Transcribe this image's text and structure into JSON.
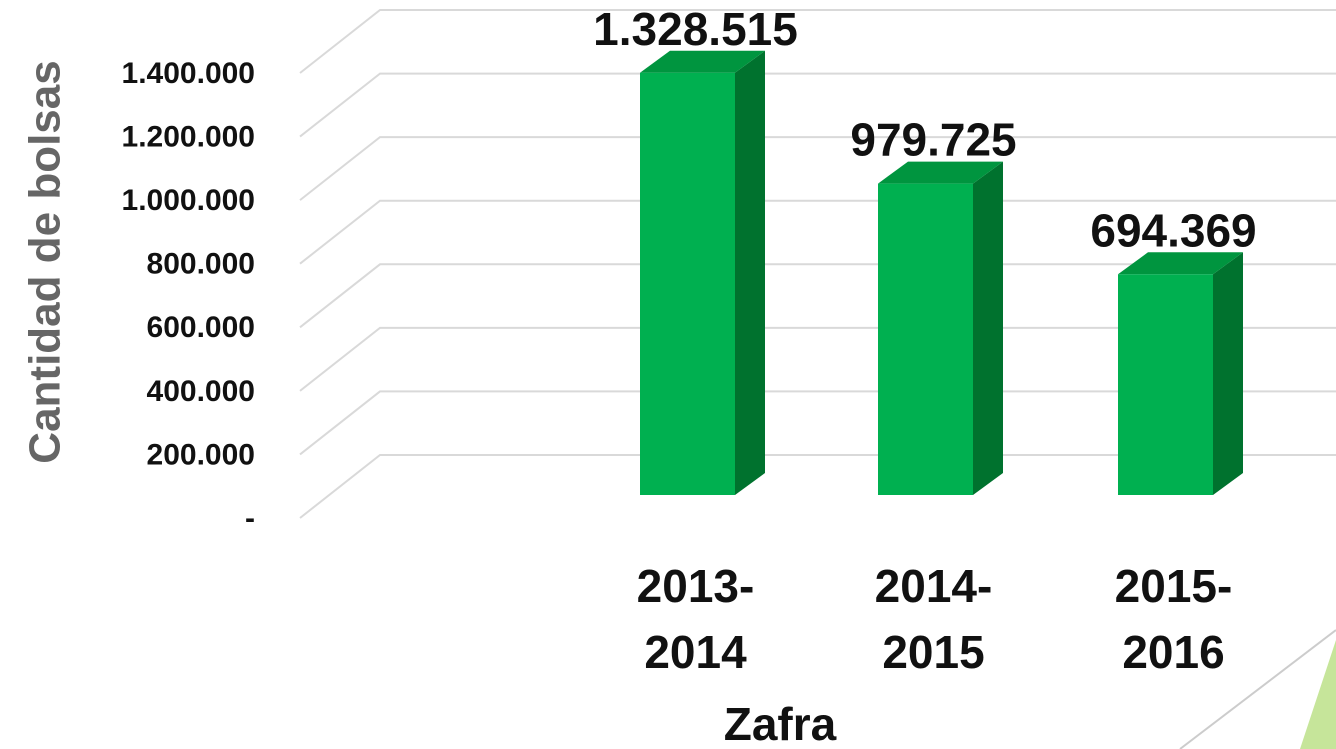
{
  "chart_data": {
    "type": "bar3d",
    "categories": [
      "2013-2014",
      "2014-2015",
      "2015-2016"
    ],
    "values": [
      1328515,
      979725,
      694369
    ],
    "value_labels": [
      "1.328.515",
      "979.725",
      "694.369"
    ],
    "color": "#00b050",
    "x_label": "Zafra",
    "y_label": "Cantidad de bolsas",
    "ylim": [
      0,
      1400000
    ],
    "yticks": [
      {
        "value": 0,
        "label": "-"
      },
      {
        "value": 200000,
        "label": "200.000"
      },
      {
        "value": 400000,
        "label": "400.000"
      },
      {
        "value": 600000,
        "label": "600.000"
      },
      {
        "value": 800000,
        "label": "800.000"
      },
      {
        "value": 1000000,
        "label": "1.000.000"
      },
      {
        "value": 1200000,
        "label": "1.200.000"
      },
      {
        "value": 1400000,
        "label": "1.400.000"
      }
    ],
    "grid": true
  }
}
